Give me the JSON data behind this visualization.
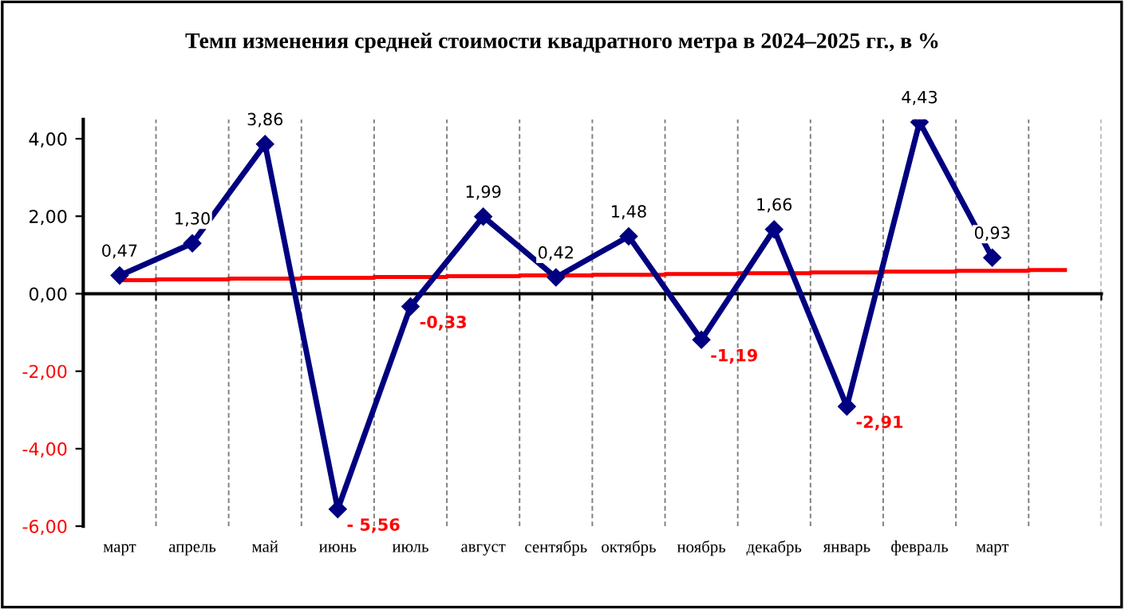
{
  "chart_data": {
    "type": "line",
    "title": "Темп изменения средней стоимости квадратного метра в 2024–2025 гг., в %",
    "categories": [
      "март",
      "апрель",
      "май",
      "июнь",
      "июль",
      "август",
      "сентябрь",
      "октябрь",
      "ноябрь",
      "декабрь",
      "январь",
      "февраль",
      "март",
      null
    ],
    "series": [
      {
        "color": "#000080",
        "values": [
          0.47,
          1.3,
          3.86,
          -5.56,
          -0.33,
          1.99,
          0.42,
          1.48,
          -1.19,
          1.66,
          -2.91,
          4.43,
          0.93,
          null
        ],
        "value_labels": [
          "0,47",
          "1,30",
          "3,86",
          "- 5,56",
          "-0,33",
          "1,99",
          "0,42",
          "1,48",
          "-1,19",
          "1,66",
          "-2,91",
          "4,43",
          "0,93",
          null
        ],
        "marker": "diamond"
      },
      {
        "type": "step",
        "color": "#ff0000",
        "values": [
          0.35,
          0.37,
          0.39,
          0.41,
          0.43,
          0.45,
          0.47,
          0.49,
          0.51,
          0.53,
          0.55,
          0.57,
          0.59,
          0.61
        ]
      }
    ],
    "ylim": [
      -6,
      4.5
    ],
    "yticks": [
      {
        "value": -6,
        "label": "-6,00"
      },
      {
        "value": -4,
        "label": "-4,00"
      },
      {
        "value": -2,
        "label": "-2,00"
      },
      {
        "value": 0,
        "label": "0,00"
      },
      {
        "value": 2,
        "label": "2,00"
      },
      {
        "value": 4,
        "label": "4,00"
      }
    ],
    "grid": "x",
    "legend": false
  }
}
